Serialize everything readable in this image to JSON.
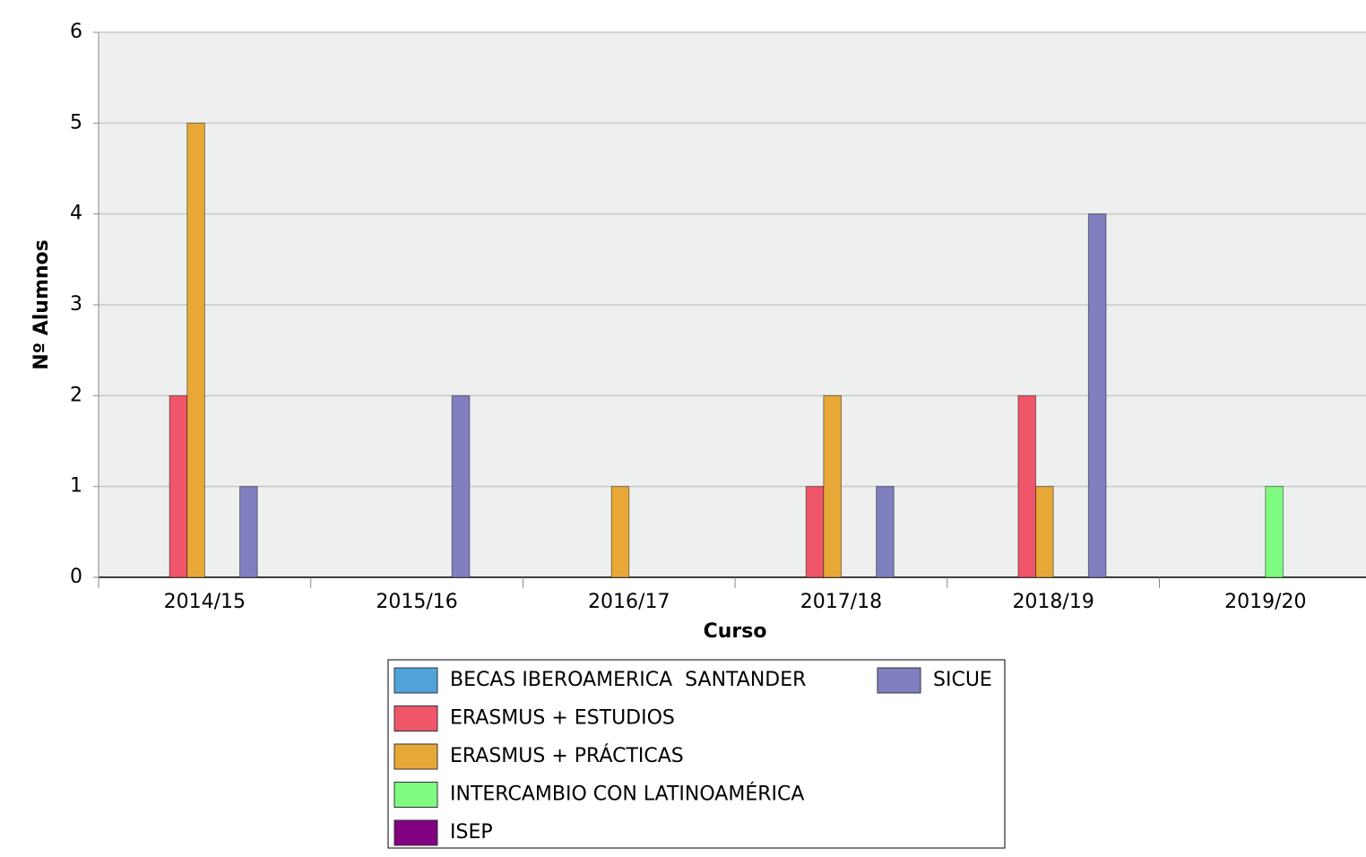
{
  "chart_data": {
    "type": "bar",
    "x_label": "Curso",
    "y_label": "Nº Alumnos",
    "categories": [
      "2014/15",
      "2015/16",
      "2016/17",
      "2017/18",
      "2018/19",
      "2019/20"
    ],
    "series": [
      {
        "name": "BECAS IBEROAMERICA  SANTANDER",
        "color": "#4fa3d9",
        "values": [
          0,
          0,
          0,
          0,
          0,
          0
        ]
      },
      {
        "name": "ERASMUS + ESTUDIOS",
        "color": "#f0566a",
        "values": [
          2,
          0,
          0,
          1,
          2,
          0
        ]
      },
      {
        "name": "ERASMUS + PRÁCTICAS",
        "color": "#e8a838",
        "values": [
          5,
          0,
          1,
          2,
          1,
          0
        ]
      },
      {
        "name": "INTERCAMBIO CON LATINOAMÉRICA",
        "color": "#80fd80",
        "values": [
          0,
          0,
          0,
          0,
          0,
          1
        ]
      },
      {
        "name": "ISEP",
        "color": "#800080",
        "values": [
          0,
          0,
          0,
          0,
          0,
          0
        ]
      },
      {
        "name": "SICUE",
        "color": "#8080c0",
        "values": [
          1,
          2,
          0,
          1,
          4,
          0
        ]
      }
    ],
    "ylim": [
      0,
      6
    ],
    "yticks": [
      0,
      1,
      2,
      3,
      4,
      5,
      6
    ],
    "grid": true
  }
}
